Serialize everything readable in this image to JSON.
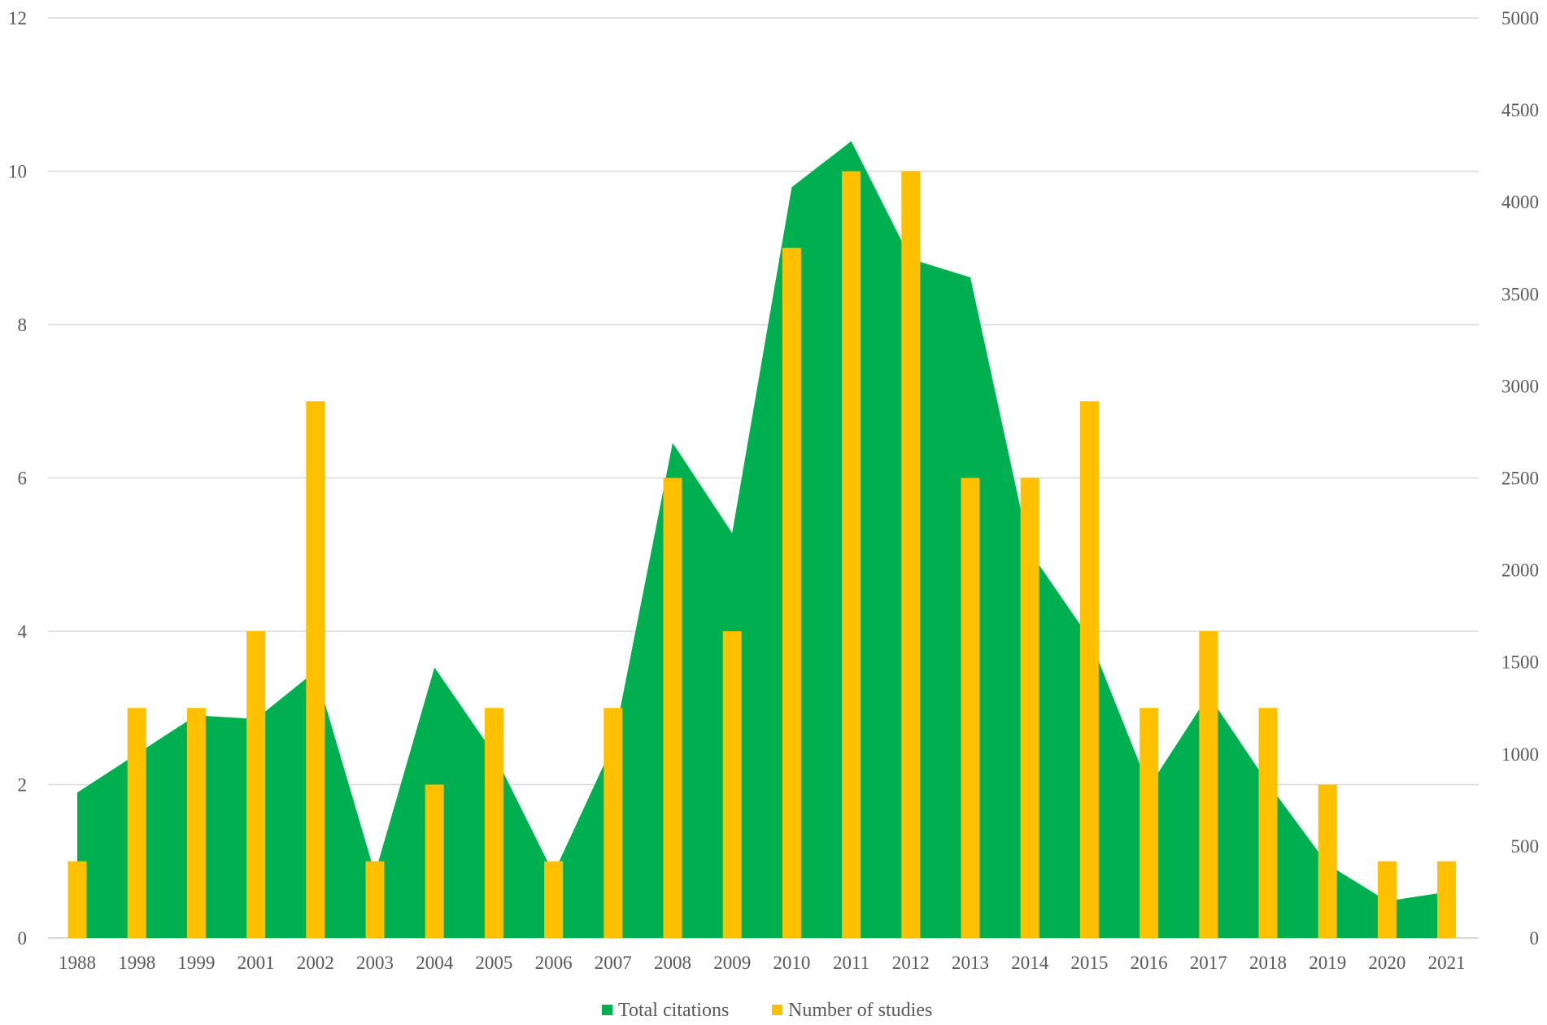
{
  "chart_data": {
    "type": "bar",
    "title": "",
    "categories": [
      "1988",
      "1998",
      "1999",
      "2001",
      "2002",
      "2003",
      "2004",
      "2005",
      "2006",
      "2007",
      "2008",
      "2009",
      "2010",
      "2011",
      "2012",
      "2013",
      "2014",
      "2015",
      "2016",
      "2017",
      "2018",
      "2019",
      "2020",
      "2021"
    ],
    "series": [
      {
        "name": "Total citations",
        "type": "area",
        "axis": "right",
        "color": "#00b050",
        "values": [
          790,
          1000,
          1210,
          1190,
          1450,
          350,
          1470,
          1000,
          350,
          1050,
          2690,
          2200,
          4080,
          4330,
          3690,
          3590,
          2100,
          1630,
          820,
          1320,
          840,
          400,
          200,
          250
        ]
      },
      {
        "name": "Number of studies",
        "type": "bar",
        "axis": "left",
        "color": "#ffc000",
        "values": [
          1,
          3,
          3,
          4,
          7,
          1,
          2,
          3,
          1,
          3,
          6,
          4,
          9,
          10,
          10,
          6,
          6,
          7,
          3,
          4,
          3,
          2,
          1,
          1
        ]
      }
    ],
    "y_left": {
      "min": 0,
      "max": 12,
      "ticks": [
        0,
        2,
        4,
        6,
        8,
        10,
        12
      ]
    },
    "y_right": {
      "min": 0,
      "max": 5000,
      "ticks": [
        0,
        500,
        1000,
        1500,
        2000,
        2500,
        3000,
        3500,
        4000,
        4500,
        5000
      ]
    },
    "grid": true,
    "legend": "bottom-center",
    "gridline_color": "#d9d9d9",
    "tick_color": "#595959"
  }
}
